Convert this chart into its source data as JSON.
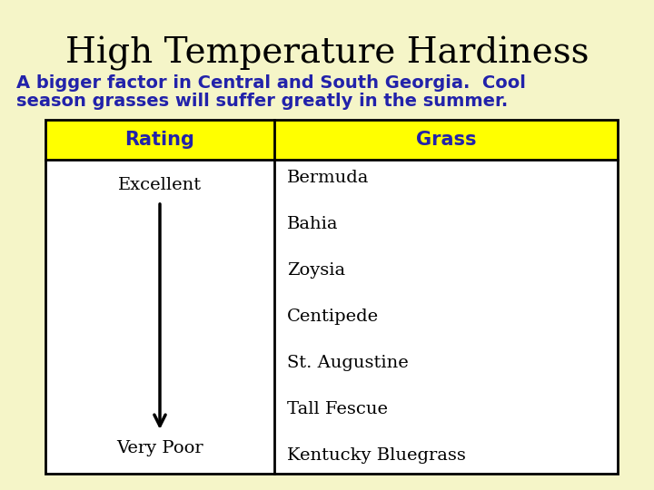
{
  "title": "High Temperature Hardiness",
  "subtitle_line1": "A bigger factor in Central and South Georgia.  Cool",
  "subtitle_line2": "season grasses will suffer greatly in the summer.",
  "background_color": "#f5f5c8",
  "title_color": "#000000",
  "subtitle_color": "#2222aa",
  "table_header_bg": "#ffff00",
  "table_header_text_color": "#2222aa",
  "table_body_bg": "#ffffff",
  "table_border_color": "#000000",
  "col1_header": "Rating",
  "col2_header": "Grass",
  "rating_top": "Excellent",
  "rating_bottom": "Very Poor",
  "grasses": [
    "Bermuda",
    "Bahia",
    "Zoysia",
    "Centipede",
    "St. Augustine",
    "Tall Fescue",
    "Kentucky Bluegrass"
  ],
  "title_fontsize": 28,
  "subtitle_fontsize": 14,
  "header_fontsize": 15,
  "body_fontsize": 14
}
